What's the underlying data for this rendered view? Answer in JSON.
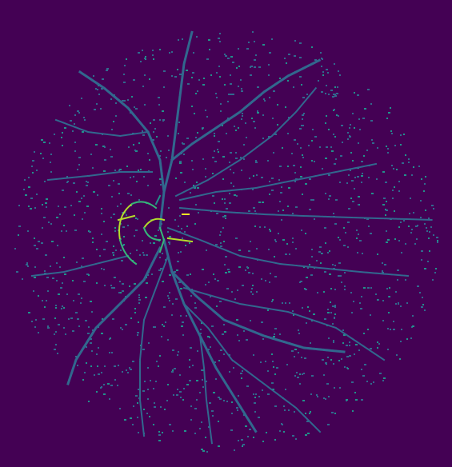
{
  "image": {
    "kind": "retinal-vessel-segmentation-map",
    "colormap": "viridis",
    "colors": {
      "background": "#440154",
      "low": "#31688e",
      "mid": "#21918c",
      "high": "#35b779",
      "peak": "#b5de2b",
      "max": "#fde725"
    },
    "optic_disc_side": "left",
    "vessel_count_estimate": 14
  }
}
